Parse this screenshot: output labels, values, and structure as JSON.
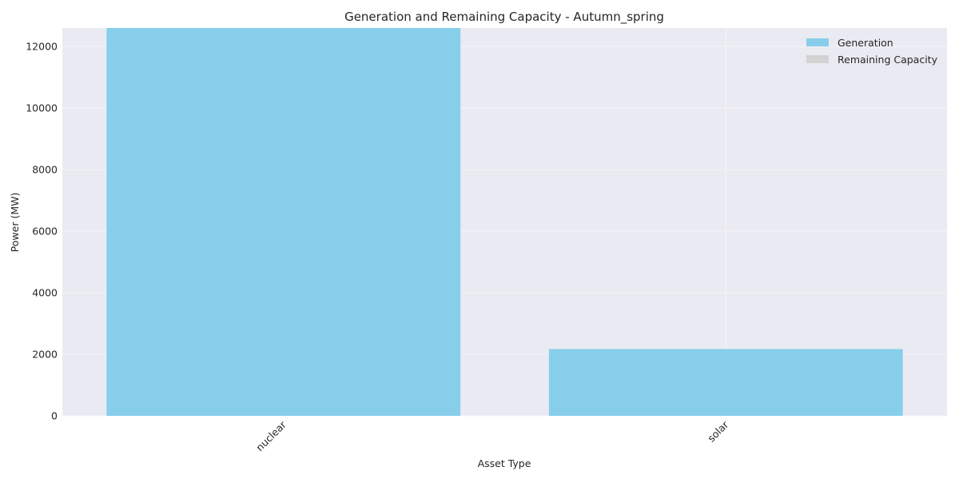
{
  "chart_data": {
    "type": "bar",
    "stacked": true,
    "title": "Generation and Remaining Capacity - Autumn_spring",
    "xlabel": "Asset Type",
    "ylabel": "Power (MW)",
    "categories": [
      "nuclear",
      "solar"
    ],
    "series": [
      {
        "name": "Generation",
        "values": [
          12600,
          2170
        ],
        "color": "#87CEEB"
      },
      {
        "name": "Remaining Capacity",
        "values": [
          0,
          0
        ],
        "color": "#D3D3D3"
      }
    ],
    "ylim": [
      0,
      12600
    ],
    "yticks": [
      0,
      2000,
      4000,
      6000,
      8000,
      10000,
      12000
    ],
    "grid": true,
    "legend_position": "top-right",
    "plot_background": "#EAEAF2"
  }
}
